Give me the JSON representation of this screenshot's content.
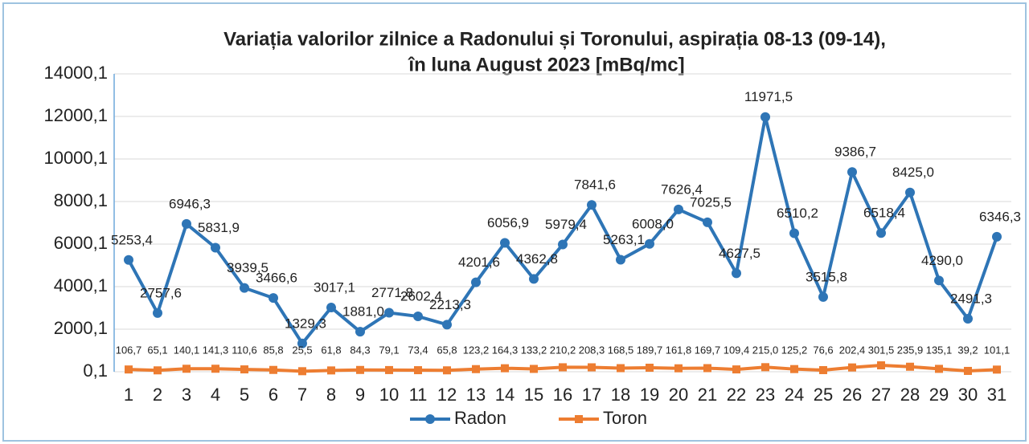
{
  "chart_data": {
    "type": "line",
    "title": [
      "Variația valorilor zilnice a Radonului și Toronului, aspirația 08-13 (09-14),",
      "în luna August 2023 [mBq/mc]"
    ],
    "categories": [
      "1",
      "2",
      "3",
      "4",
      "5",
      "6",
      "7",
      "8",
      "9",
      "10",
      "11",
      "12",
      "13",
      "14",
      "15",
      "16",
      "17",
      "18",
      "19",
      "20",
      "21",
      "22",
      "23",
      "24",
      "25",
      "26",
      "27",
      "28",
      "29",
      "30",
      "31"
    ],
    "series": [
      {
        "name": "Radon",
        "color": "#2e75b6",
        "marker": "circle",
        "values": [
          5253.4,
          2757.6,
          6946.3,
          5831.9,
          3939.5,
          3466.6,
          1329.3,
          3017.1,
          1881.0,
          2771.8,
          2602.4,
          2213.3,
          4201.6,
          6056.9,
          4362.8,
          5979.4,
          7841.6,
          5263.1,
          6008.0,
          7626.4,
          7025.5,
          4627.5,
          11971.5,
          6510.2,
          3515.8,
          9386.7,
          6518.4,
          8425.0,
          4290.0,
          2491.3,
          6346.3
        ],
        "value_labels": [
          "5253,4",
          "2757,6",
          "6946,3",
          "5831,9",
          "3939,5",
          "3466,6",
          "1329,3",
          "3017,1",
          "1881,0",
          "2771,8",
          "2602,4",
          "2213,3",
          "4201,6",
          "6056,9",
          "4362,8",
          "5979,4",
          "7841,6",
          "5263,1",
          "6008,0",
          "7626,4",
          "7025,5",
          "4627,5",
          "11971,5",
          "6510,2",
          "3515,8",
          "9386,7",
          "6518,4",
          "8425,0",
          "4290,0",
          "2491,3",
          "6346,3"
        ]
      },
      {
        "name": "Toron",
        "color": "#ed7d31",
        "marker": "square",
        "values": [
          106.7,
          65.1,
          140.1,
          141.3,
          110.6,
          85.8,
          25.5,
          61.8,
          84.3,
          79.1,
          73.4,
          65.8,
          123.2,
          164.3,
          133.2,
          210.2,
          208.3,
          168.5,
          189.7,
          161.8,
          169.7,
          109.4,
          215.0,
          125.2,
          76.6,
          202.4,
          301.5,
          235.9,
          135.1,
          39.2,
          101.1
        ],
        "value_labels": [
          "106,7",
          "65,1",
          "140,1",
          "141,3",
          "110,6",
          "85,8",
          "25,5",
          "61,8",
          "84,3",
          "79,1",
          "73,4",
          "65,8",
          "123,2",
          "164,3",
          "133,2",
          "210,2",
          "208,3",
          "168,5",
          "189,7",
          "161,8",
          "169,7",
          "109,4",
          "215,0",
          "125,2",
          "76,6",
          "202,4",
          "301,5",
          "235,9",
          "135,1",
          "39,2",
          "101,1"
        ]
      }
    ],
    "ylim": [
      0.1,
      14000.1
    ],
    "yticks": [
      {
        "value": 0.1,
        "label": "0,1"
      },
      {
        "value": 2000.1,
        "label": "2000,1"
      },
      {
        "value": 4000.1,
        "label": "4000,1"
      },
      {
        "value": 6000.1,
        "label": "6000,1"
      },
      {
        "value": 8000.1,
        "label": "8000,1"
      },
      {
        "value": 10000.1,
        "label": "10000,1"
      },
      {
        "value": 12000.1,
        "label": "12000,1"
      },
      {
        "value": 14000.1,
        "label": "14000,1"
      }
    ],
    "grid": true,
    "legend": "bottom"
  }
}
